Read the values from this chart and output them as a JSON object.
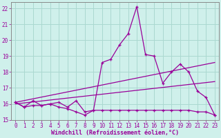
{
  "xlabel": "Windchill (Refroidissement éolien,°C)",
  "background_color": "#cff0eb",
  "grid_color": "#aad8d0",
  "line_color": "#990099",
  "xlim": [
    -0.5,
    23.5
  ],
  "ylim": [
    15,
    22.4
  ],
  "yticks": [
    15,
    16,
    17,
    18,
    19,
    20,
    21,
    22
  ],
  "xticks": [
    0,
    1,
    2,
    3,
    4,
    5,
    6,
    7,
    8,
    9,
    10,
    11,
    12,
    13,
    14,
    15,
    16,
    17,
    18,
    19,
    20,
    21,
    22,
    23
  ],
  "series_main_x": [
    0,
    1,
    2,
    3,
    4,
    5,
    6,
    7,
    8,
    9,
    10,
    11,
    12,
    13,
    14,
    15,
    16,
    17,
    18,
    19,
    20,
    21,
    22,
    23
  ],
  "series_main_y": [
    16.1,
    15.8,
    16.2,
    15.9,
    16.0,
    16.1,
    15.8,
    16.2,
    15.5,
    15.6,
    18.6,
    18.8,
    19.7,
    20.4,
    22.1,
    19.1,
    19.0,
    17.3,
    18.0,
    18.5,
    18.0,
    16.8,
    16.4,
    15.3
  ],
  "series_flat_x": [
    0,
    1,
    2,
    3,
    4,
    5,
    6,
    7,
    8,
    9,
    10,
    11,
    12,
    13,
    14,
    15,
    16,
    17,
    18,
    19,
    20,
    21,
    22,
    23
  ],
  "series_flat_y": [
    16.1,
    15.8,
    15.9,
    15.9,
    16.0,
    15.8,
    15.7,
    15.5,
    15.3,
    15.6,
    15.6,
    15.6,
    15.6,
    15.6,
    15.6,
    15.6,
    15.6,
    15.6,
    15.6,
    15.6,
    15.6,
    15.5,
    15.5,
    15.3
  ],
  "trend1_x": [
    0,
    23
  ],
  "trend1_y": [
    16.0,
    17.4
  ],
  "trend2_x": [
    0,
    23
  ],
  "trend2_y": [
    16.1,
    18.6
  ],
  "tick_fontsize": 5.5,
  "xlabel_fontsize": 6.0
}
